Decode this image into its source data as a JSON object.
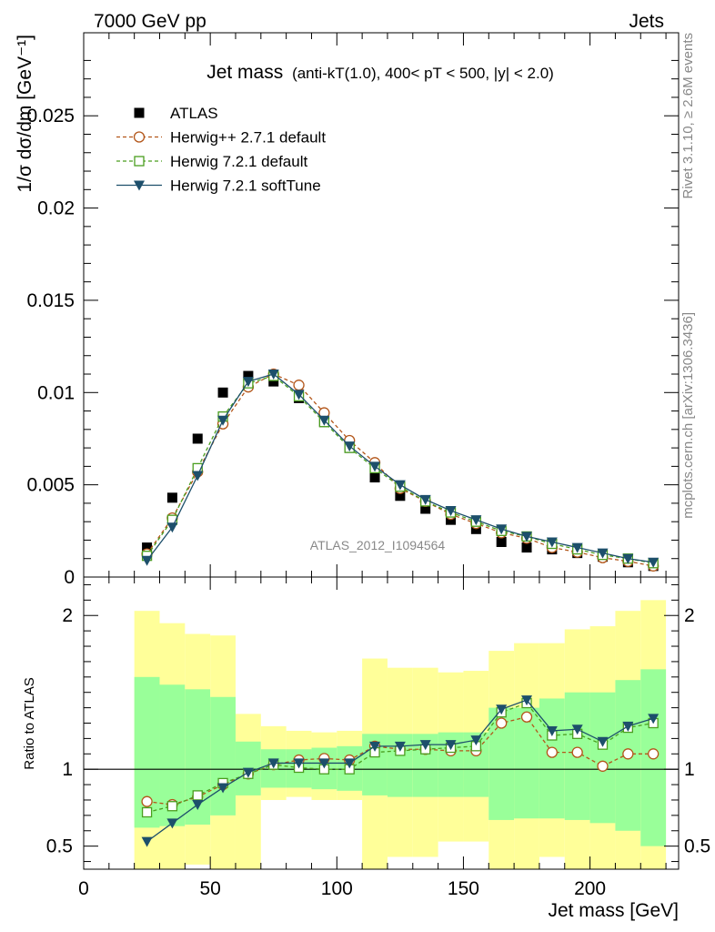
{
  "header": {
    "energy_label": "7000 GeV pp",
    "process_label": "Jets"
  },
  "side_labels": {
    "rivet": "Rivet 3.1.10, ≥ 2.6M events",
    "mcplots": "mcplots.cern.ch [arXiv:1306.3436]"
  },
  "colors": {
    "atlas": "#000000",
    "herwigpp": "#b3561a",
    "herwig721": "#4a9e1f",
    "softtune": "#1d4f6b",
    "band_inner": "#99ff99",
    "band_outer": "#ffff99"
  },
  "chart_data": [
    {
      "type": "scatter",
      "title": "Jet mass",
      "title_detail": "(anti-kT(1.0), 400< pT < 500, |y| < 2.0)",
      "ylabel": "1/σ dσ/dm [GeV⁻¹]",
      "watermark": "ATLAS_2012_I1094564",
      "xlim": [
        0,
        235
      ],
      "ylim": [
        0,
        0.0295
      ],
      "y_ticks": [
        "0",
        "0.005",
        "0.01",
        "0.015",
        "0.02",
        "0.025"
      ],
      "y_tick_values": [
        0,
        0.005,
        0.01,
        0.015,
        0.02,
        0.025
      ],
      "bin_centers": [
        25,
        35,
        45,
        55,
        65,
        75,
        85,
        95,
        105,
        115,
        125,
        135,
        145,
        155,
        165,
        175,
        185,
        195,
        205,
        215,
        225
      ],
      "series": [
        {
          "name": "ATLAS",
          "marker": "filled-square",
          "values": [
            0.0016,
            0.0043,
            0.0075,
            0.01,
            0.0109,
            0.0106,
            0.0097,
            0.0084,
            0.007,
            0.0054,
            0.0044,
            0.0037,
            0.0031,
            0.0026,
            0.0019,
            0.0016,
            0.0015,
            0.0013,
            0.0011,
            0.0008,
            0.0006
          ]
        },
        {
          "name": "Herwig++ 2.7.1 default",
          "marker": "open-circle",
          "dashed": true,
          "values": [
            0.00125,
            0.0032,
            0.0057,
            0.0083,
            0.0103,
            0.011,
            0.0104,
            0.0089,
            0.0074,
            0.0062,
            0.0048,
            0.0041,
            0.0034,
            0.0029,
            0.0024,
            0.0021,
            0.0016,
            0.00135,
            0.00105,
            0.00085,
            0.0006
          ]
        },
        {
          "name": "Herwig 7.2.1 default",
          "marker": "open-square",
          "dashed": true,
          "values": [
            0.00115,
            0.0031,
            0.0059,
            0.0087,
            0.0105,
            0.0109,
            0.0098,
            0.0084,
            0.007,
            0.0059,
            0.0049,
            0.0041,
            0.0035,
            0.003,
            0.0025,
            0.0022,
            0.0018,
            0.0015,
            0.0012,
            0.001,
            0.00075
          ]
        },
        {
          "name": "Herwig 7.2.1 softTune",
          "marker": "filled-triangle-down",
          "values": [
            0.0009,
            0.0027,
            0.0055,
            0.0085,
            0.0106,
            0.011,
            0.0099,
            0.0085,
            0.0071,
            0.006,
            0.005,
            0.0042,
            0.0036,
            0.0031,
            0.0026,
            0.0022,
            0.0019,
            0.0016,
            0.0013,
            0.001,
            0.0008
          ]
        }
      ]
    },
    {
      "type": "line",
      "ylabel": "Ratio to ATLAS",
      "xlabel": "Jet mass [GeV]",
      "xlim": [
        0,
        235
      ],
      "ylim": [
        0.35,
        2.25
      ],
      "x_ticks": [
        "0",
        "50",
        "100",
        "150",
        "200"
      ],
      "x_tick_values": [
        0,
        50,
        100,
        150,
        200
      ],
      "y_ticks": [
        "0.5",
        "1",
        "2"
      ],
      "y_tick_values": [
        0.5,
        1,
        2
      ],
      "reference_line": 1,
      "bins": [
        [
          20,
          30
        ],
        [
          30,
          40
        ],
        [
          40,
          50
        ],
        [
          50,
          60
        ],
        [
          60,
          70
        ],
        [
          70,
          80
        ],
        [
          80,
          90
        ],
        [
          90,
          100
        ],
        [
          100,
          110
        ],
        [
          110,
          120
        ],
        [
          120,
          130
        ],
        [
          130,
          140
        ],
        [
          140,
          150
        ],
        [
          150,
          160
        ],
        [
          160,
          170
        ],
        [
          170,
          180
        ],
        [
          180,
          190
        ],
        [
          190,
          200
        ],
        [
          200,
          210
        ],
        [
          210,
          220
        ],
        [
          220,
          230
        ]
      ],
      "band_inner": {
        "low": [
          0.62,
          0.63,
          0.64,
          0.7,
          0.83,
          0.88,
          0.88,
          0.87,
          0.86,
          0.83,
          0.82,
          0.82,
          0.82,
          0.82,
          0.67,
          0.68,
          0.68,
          0.67,
          0.65,
          0.6,
          0.5
        ],
        "high": [
          1.6,
          1.55,
          1.52,
          1.47,
          1.18,
          1.13,
          1.13,
          1.14,
          1.15,
          1.23,
          1.23,
          1.23,
          1.24,
          1.24,
          1.4,
          1.4,
          1.46,
          1.5,
          1.5,
          1.58,
          1.65
        ]
      },
      "band_outer": {
        "low": [
          0.35,
          0.35,
          0.38,
          0.35,
          0.35,
          0.8,
          0.82,
          0.8,
          0.8,
          0.35,
          0.43,
          0.43,
          0.53,
          0.53,
          0.35,
          0.35,
          0.43,
          0.35,
          0.35,
          0.35,
          0.35
        ],
        "high": [
          2.03,
          1.95,
          1.88,
          1.87,
          1.36,
          1.28,
          1.25,
          1.24,
          1.25,
          1.72,
          1.66,
          1.66,
          1.63,
          1.64,
          1.77,
          1.82,
          1.82,
          1.91,
          1.93,
          2.03,
          2.1
        ]
      },
      "bin_centers": [
        25,
        35,
        45,
        55,
        65,
        75,
        85,
        95,
        105,
        115,
        125,
        135,
        145,
        155,
        165,
        175,
        185,
        195,
        205,
        215,
        225
      ],
      "series": [
        {
          "name": "Herwig++ 2.7.1 default",
          "marker": "open-circle",
          "dashed": true,
          "values": [
            0.79,
            0.77,
            0.82,
            0.9,
            0.97,
            1.03,
            1.06,
            1.07,
            1.06,
            1.15,
            1.13,
            1.13,
            1.12,
            1.12,
            1.3,
            1.34,
            1.11,
            1.11,
            1.02,
            1.1,
            1.1
          ]
        },
        {
          "name": "Herwig 7.2.1 default",
          "marker": "open-square",
          "dashed": true,
          "values": [
            0.72,
            0.76,
            0.83,
            0.91,
            0.97,
            1.03,
            1.01,
            1.0,
            1.0,
            1.11,
            1.12,
            1.13,
            1.14,
            1.15,
            1.37,
            1.43,
            1.22,
            1.23,
            1.16,
            1.27,
            1.3
          ]
        },
        {
          "name": "Herwig 7.2.1 softTune",
          "marker": "filled-triangle-down",
          "values": [
            0.53,
            0.65,
            0.77,
            0.88,
            0.98,
            1.04,
            1.04,
            1.04,
            1.04,
            1.15,
            1.15,
            1.16,
            1.16,
            1.19,
            1.39,
            1.45,
            1.25,
            1.26,
            1.18,
            1.28,
            1.33
          ]
        }
      ]
    }
  ]
}
